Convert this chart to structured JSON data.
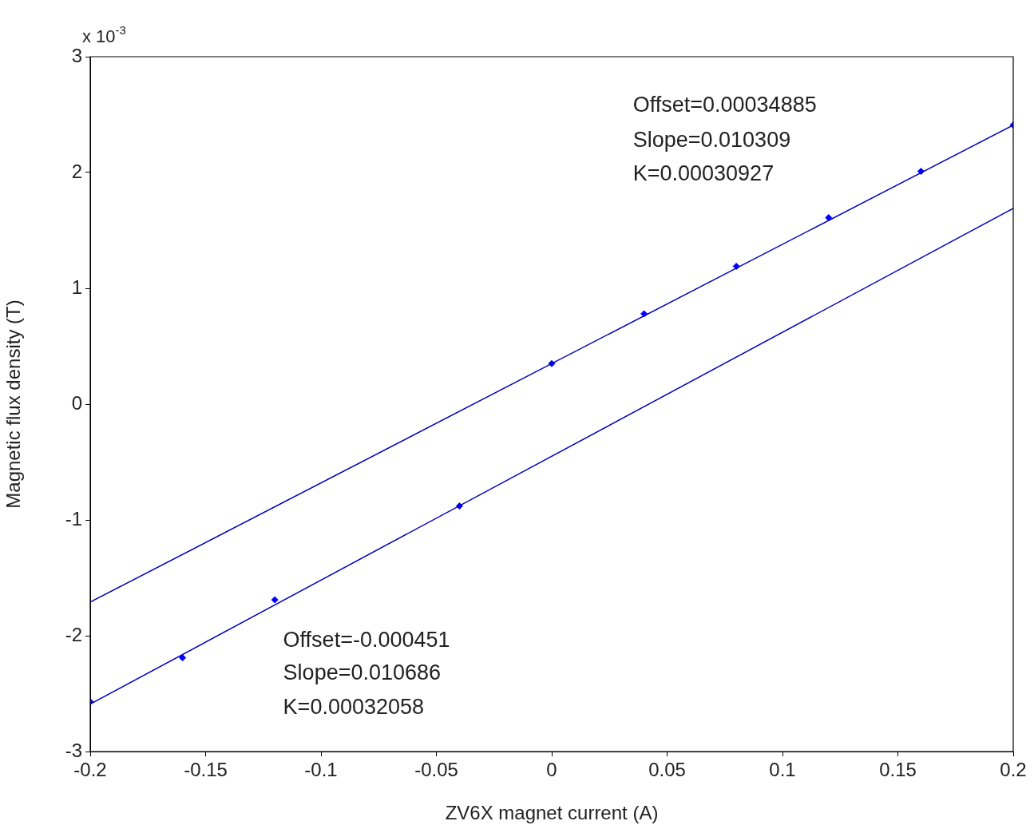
{
  "chart_data": {
    "type": "scatter",
    "xlabel": "ZV6X magnet current (A)",
    "ylabel": "Magnetic flux density (T)",
    "xlim": [
      -0.2,
      0.2
    ],
    "xticks": [
      -0.2,
      -0.15,
      -0.1,
      -0.05,
      0,
      0.05,
      0.1,
      0.15,
      0.2
    ],
    "ylim": [
      -3,
      3
    ],
    "yticks": [
      -3,
      -2,
      -1,
      0,
      1,
      2,
      3
    ],
    "grid": false,
    "legend": false,
    "series": [
      {
        "type": "line",
        "marker": "none",
        "line_style": "solid",
        "color": "#0000bb",
        "x": [
          -0.2,
          0.2
        ],
        "values": [
          -1.71,
          2.41
        ]
      },
      {
        "type": "line",
        "marker": "none",
        "line_style": "solid",
        "color": "#0000bb",
        "x": [
          -0.2,
          0.2
        ],
        "values": [
          -2.59,
          1.69
        ]
      },
      {
        "marker": "diamond",
        "color": "#0000ff",
        "x": [
          0,
          0.04,
          0.08,
          0.12,
          0.16,
          0.2
        ],
        "values": [
          0.35,
          0.78,
          1.19,
          1.61,
          2.01,
          2.41
        ]
      },
      {
        "marker": "diamond",
        "color": "#0000ff",
        "x": [
          -0.2,
          -0.16,
          -0.12,
          -0.04
        ],
        "values": [
          -2.57,
          -2.19,
          -1.69,
          -0.88
        ]
      }
    ],
    "annotations": [
      "x 10$^{-3}$",
      "Offset=0.00034885",
      "Slope=0.010309",
      "K=0.00030927",
      "Offset=-0.000451",
      "Slope=0.010686",
      "K=0.00032058"
    ]
  }
}
